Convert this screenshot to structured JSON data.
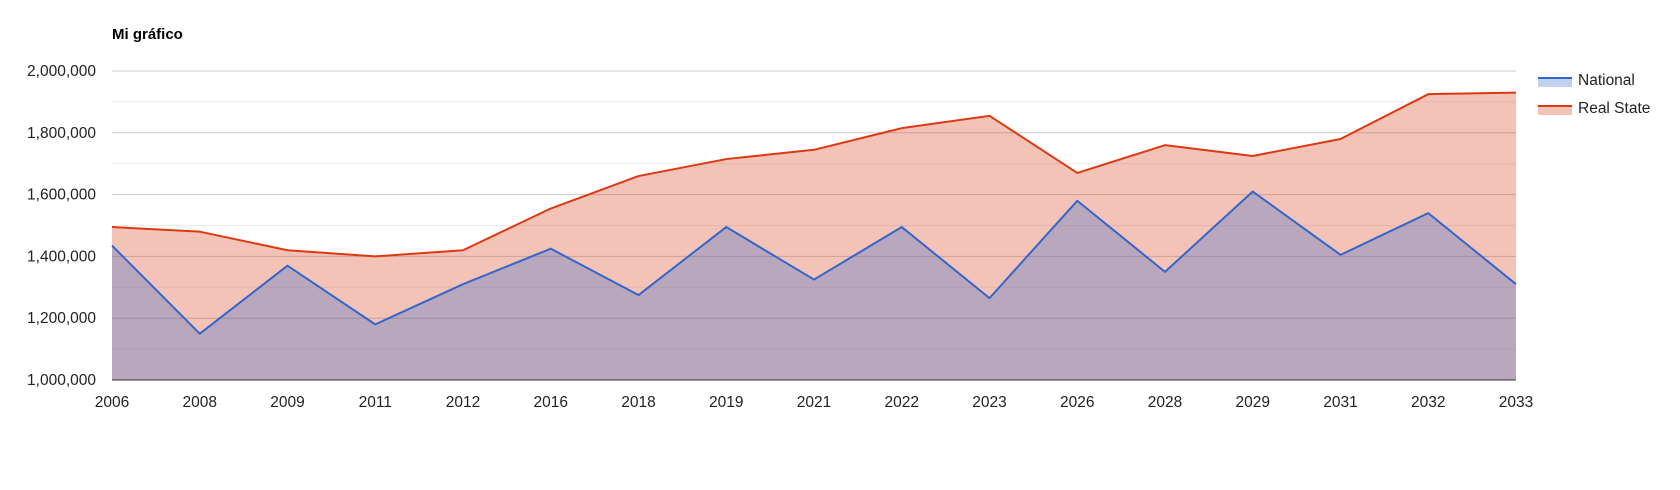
{
  "chart_data": {
    "type": "area",
    "title": "Mi gráfico",
    "xlabel": "",
    "ylabel": "",
    "categories": [
      "2006",
      "2008",
      "2009",
      "2011",
      "2012",
      "2016",
      "2018",
      "2019",
      "2021",
      "2022",
      "2023",
      "2026",
      "2028",
      "2029",
      "2031",
      "2032",
      "2033"
    ],
    "series": [
      {
        "name": "National",
        "color": "#3366cc",
        "values": [
          1435000,
          1150000,
          1370000,
          1180000,
          1310000,
          1425000,
          1275000,
          1495000,
          1325000,
          1495000,
          1265000,
          1580000,
          1350000,
          1610000,
          1405000,
          1540000,
          1310000
        ]
      },
      {
        "name": "Real State",
        "color": "#dc3912",
        "values": [
          1495000,
          1480000,
          1420000,
          1400000,
          1420000,
          1555000,
          1660000,
          1715000,
          1745000,
          1815000,
          1855000,
          1670000,
          1760000,
          1725000,
          1780000,
          1925000,
          1930000
        ]
      }
    ],
    "ylim": [
      1000000,
      2000000
    ],
    "yticks": [
      "1,000,000",
      "1,200,000",
      "1,400,000",
      "1,600,000",
      "1,800,000",
      "2,000,000"
    ],
    "grid": true,
    "legend_position": "right"
  }
}
